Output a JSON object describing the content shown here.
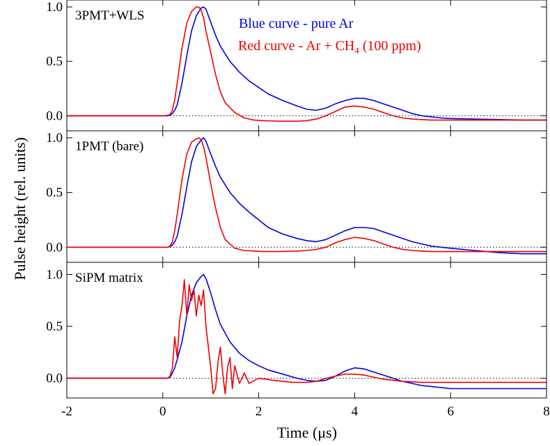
{
  "chart_data": {
    "type": "line",
    "xlabel": "Time (μs)",
    "ylabel": "Pulse height (rel. units)",
    "xlim": [
      -2,
      8
    ],
    "xticks": [
      "-2",
      "0",
      "2",
      "4",
      "6",
      "8"
    ],
    "legend": {
      "placement": "top-right, first panel",
      "blue_text": "Blue curve - pure Ar",
      "red_text_main": "Red curve - Ar + CH",
      "red_text_sub": "4",
      "red_text_tail": " (100 ppm)"
    },
    "colors": {
      "blue": "#0000dd",
      "red": "#ee0000"
    },
    "panels": [
      {
        "label": "3PMT+WLS",
        "ylim": [
          -0.1,
          1.0
        ],
        "yticks": [
          "0.0",
          "0.5",
          "1.0"
        ],
        "series": [
          {
            "color": "blue",
            "x": [
              -2,
              0,
              0.05,
              0.1,
              0.15,
              0.2,
              0.25,
              0.3,
              0.4,
              0.5,
              0.6,
              0.7,
              0.8,
              0.85,
              0.9,
              1.0,
              1.1,
              1.2,
              1.4,
              1.6,
              1.8,
              2.0,
              2.2,
              2.5,
              2.8,
              3.0,
              3.2,
              3.4,
              3.6,
              3.8,
              4.0,
              4.2,
              4.4,
              4.6,
              4.8,
              5.0,
              5.2,
              5.4,
              5.6,
              5.8,
              6.0,
              6.5,
              7.0,
              7.5,
              8.0
            ],
            "y": [
              0,
              0,
              0,
              0,
              0.005,
              0.02,
              0.05,
              0.1,
              0.3,
              0.55,
              0.78,
              0.92,
              0.99,
              1.0,
              0.98,
              0.86,
              0.74,
              0.64,
              0.5,
              0.4,
              0.32,
              0.26,
              0.2,
              0.14,
              0.09,
              0.06,
              0.05,
              0.07,
              0.11,
              0.14,
              0.16,
              0.16,
              0.14,
              0.11,
              0.08,
              0.05,
              0.02,
              0.0,
              -0.01,
              -0.02,
              -0.025,
              -0.03,
              -0.035,
              -0.04,
              -0.04
            ]
          },
          {
            "color": "red",
            "x": [
              -2,
              0,
              0.05,
              0.1,
              0.15,
              0.2,
              0.25,
              0.3,
              0.4,
              0.5,
              0.6,
              0.7,
              0.75,
              0.8,
              0.85,
              0.9,
              1.0,
              1.1,
              1.2,
              1.3,
              1.5,
              1.7,
              1.9,
              2.1,
              2.4,
              2.8,
              3.0,
              3.2,
              3.4,
              3.6,
              3.8,
              4.0,
              4.2,
              4.4,
              4.6,
              4.8,
              5.0,
              5.2,
              5.4,
              5.6,
              6.0,
              6.5,
              7.0,
              7.5,
              8.0
            ],
            "y": [
              0,
              0,
              0,
              0.005,
              0.01,
              0.05,
              0.15,
              0.3,
              0.62,
              0.85,
              0.96,
              1.0,
              1.0,
              0.97,
              0.9,
              0.78,
              0.58,
              0.38,
              0.22,
              0.12,
              0.03,
              -0.02,
              -0.04,
              -0.045,
              -0.05,
              -0.05,
              -0.045,
              -0.03,
              0.0,
              0.04,
              0.08,
              0.09,
              0.08,
              0.06,
              0.03,
              0.0,
              -0.02,
              -0.03,
              -0.035,
              -0.04,
              -0.04,
              -0.04,
              -0.04,
              -0.04,
              -0.04
            ]
          }
        ]
      },
      {
        "label": "1PMT (bare)",
        "ylim": [
          -0.1,
          1.0
        ],
        "yticks": [
          "0.0",
          "0.5",
          "1.0"
        ],
        "series": [
          {
            "color": "blue",
            "x": [
              -2,
              0,
              0.1,
              0.15,
              0.2,
              0.25,
              0.3,
              0.4,
              0.5,
              0.6,
              0.7,
              0.8,
              0.85,
              0.9,
              1.0,
              1.1,
              1.2,
              1.4,
              1.6,
              1.8,
              2.0,
              2.2,
              2.5,
              2.8,
              3.0,
              3.2,
              3.4,
              3.6,
              3.8,
              4.0,
              4.2,
              4.4,
              4.6,
              4.8,
              5.0,
              5.2,
              5.4,
              5.6,
              5.8,
              6.0,
              6.5,
              7.0,
              7.5,
              8.0
            ],
            "y": [
              0,
              0,
              0,
              0.005,
              0.02,
              0.05,
              0.1,
              0.3,
              0.55,
              0.78,
              0.92,
              0.98,
              1.0,
              0.97,
              0.85,
              0.74,
              0.64,
              0.5,
              0.4,
              0.32,
              0.25,
              0.18,
              0.12,
              0.08,
              0.06,
              0.05,
              0.07,
              0.11,
              0.15,
              0.18,
              0.18,
              0.17,
              0.14,
              0.11,
              0.08,
              0.05,
              0.03,
              0.01,
              0.0,
              -0.01,
              -0.03,
              -0.05,
              -0.06,
              -0.06
            ]
          },
          {
            "color": "red",
            "x": [
              -2,
              0,
              0.1,
              0.15,
              0.2,
              0.25,
              0.3,
              0.4,
              0.5,
              0.6,
              0.7,
              0.75,
              0.8,
              0.85,
              0.9,
              1.0,
              1.1,
              1.2,
              1.3,
              1.5,
              1.7,
              1.9,
              2.1,
              2.4,
              2.8,
              3.0,
              3.2,
              3.4,
              3.6,
              3.8,
              4.0,
              4.2,
              4.4,
              4.6,
              4.8,
              5.0,
              5.2,
              5.4,
              5.6,
              6.0,
              6.5,
              7.0,
              7.5,
              8.0
            ],
            "y": [
              0,
              0,
              0,
              0.01,
              0.05,
              0.15,
              0.3,
              0.62,
              0.85,
              0.96,
              0.99,
              1.0,
              0.98,
              0.92,
              0.82,
              0.58,
              0.36,
              0.18,
              0.07,
              -0.01,
              -0.03,
              -0.035,
              -0.04,
              -0.04,
              -0.035,
              -0.03,
              -0.02,
              0.0,
              0.04,
              0.07,
              0.09,
              0.08,
              0.06,
              0.03,
              0.0,
              -0.02,
              -0.03,
              -0.035,
              -0.04,
              -0.04,
              -0.04,
              -0.04,
              -0.04,
              -0.04
            ]
          }
        ]
      },
      {
        "label": "SiPM matrix",
        "ylim": [
          -0.15,
          1.05
        ],
        "yticks": [
          "0.0",
          "0.5",
          "1.0"
        ],
        "series": [
          {
            "color": "blue",
            "x": [
              -2,
              0,
              0.1,
              0.15,
              0.2,
              0.25,
              0.3,
              0.4,
              0.5,
              0.6,
              0.7,
              0.8,
              0.85,
              0.9,
              1.0,
              1.1,
              1.2,
              1.4,
              1.6,
              1.8,
              2.0,
              2.2,
              2.5,
              2.8,
              3.0,
              3.2,
              3.4,
              3.6,
              3.8,
              4.0,
              4.2,
              4.4,
              4.6,
              4.8,
              5.0,
              5.2,
              5.4,
              5.6,
              5.8,
              6.0,
              6.5,
              7.0,
              7.5,
              8.0
            ],
            "y": [
              0,
              0,
              0,
              0.01,
              0.05,
              0.1,
              0.18,
              0.35,
              0.6,
              0.8,
              0.92,
              0.98,
              1.0,
              0.96,
              0.82,
              0.66,
              0.52,
              0.35,
              0.24,
              0.17,
              0.12,
              0.08,
              0.04,
              0.0,
              -0.02,
              -0.03,
              -0.02,
              0.02,
              0.07,
              0.1,
              0.09,
              0.06,
              0.03,
              0.0,
              -0.03,
              -0.05,
              -0.07,
              -0.08,
              -0.09,
              -0.1,
              -0.1,
              -0.1,
              -0.1,
              -0.1
            ]
          },
          {
            "color": "red",
            "x": [
              -2,
              0,
              0.1,
              0.15,
              0.2,
              0.25,
              0.3,
              0.35,
              0.4,
              0.45,
              0.5,
              0.55,
              0.6,
              0.65,
              0.7,
              0.75,
              0.8,
              0.85,
              0.9,
              0.95,
              1.0,
              1.05,
              1.1,
              1.15,
              1.2,
              1.25,
              1.3,
              1.35,
              1.4,
              1.45,
              1.5,
              1.6,
              1.7,
              1.8,
              2.0,
              2.3,
              2.7,
              3.0,
              3.2,
              3.4,
              3.6,
              3.8,
              4.0,
              4.2,
              4.4,
              4.6,
              4.8,
              5.0,
              5.2,
              5.4,
              6.0,
              7.0,
              8.0
            ],
            "y": [
              0,
              0,
              0,
              0.02,
              0.1,
              0.4,
              0.2,
              0.55,
              0.7,
              0.95,
              0.6,
              0.9,
              0.75,
              0.85,
              0.6,
              0.8,
              0.7,
              0.85,
              0.5,
              0.3,
              0.1,
              -0.15,
              -0.1,
              0.15,
              0.3,
              0.05,
              -0.15,
              0.1,
              0.2,
              -0.1,
              0.12,
              -0.05,
              0.05,
              -0.05,
              0.0,
              -0.02,
              -0.04,
              -0.04,
              -0.03,
              0.0,
              0.02,
              0.04,
              0.04,
              0.03,
              0.01,
              -0.01,
              -0.02,
              -0.03,
              -0.035,
              -0.04,
              -0.04,
              -0.04,
              -0.04
            ]
          }
        ]
      }
    ]
  }
}
